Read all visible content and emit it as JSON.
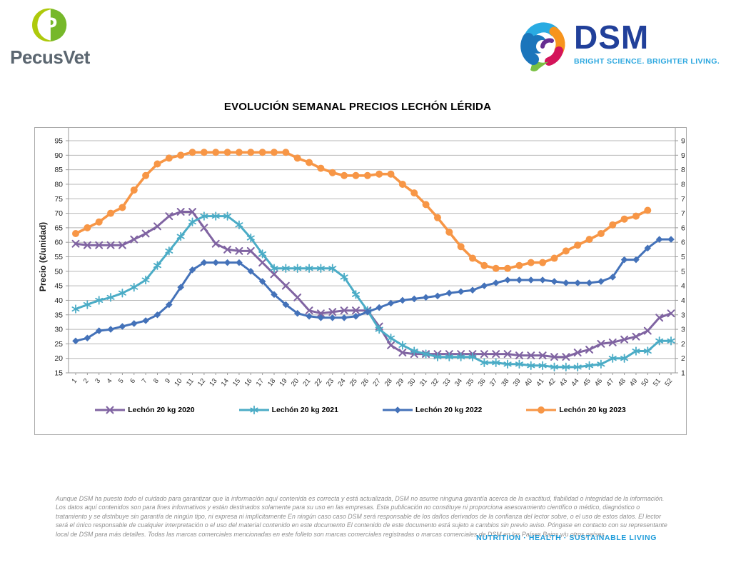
{
  "header": {
    "pecusvet_name": "PecusVet",
    "dsm_name": "DSM",
    "dsm_tagline": "BRIGHT SCIENCE. BRIGHTER LIVING."
  },
  "chart_data": {
    "type": "line",
    "title": "EVOLUCIÓN SEMANAL PRECIOS LECHÓN LÉRIDA",
    "xlabel": "",
    "ylabel": "Precio (€/unidad)",
    "ylim": [
      15,
      95
    ],
    "ystep": 5,
    "grid": true,
    "legend_position": "bottom",
    "x": [
      1,
      2,
      3,
      4,
      5,
      6,
      7,
      8,
      9,
      10,
      11,
      12,
      13,
      14,
      15,
      16,
      17,
      18,
      19,
      20,
      21,
      22,
      23,
      24,
      25,
      26,
      27,
      28,
      29,
      30,
      31,
      32,
      33,
      34,
      35,
      36,
      37,
      38,
      39,
      40,
      41,
      42,
      43,
      44,
      45,
      46,
      47,
      48,
      49,
      50,
      51,
      52
    ],
    "series": [
      {
        "name": "Lechón 20 kg 2020",
        "color": "#8064A2",
        "marker": "x",
        "values": [
          59.5,
          59,
          59,
          59,
          59,
          61,
          63,
          65.5,
          69,
          70.5,
          70.5,
          65,
          59.5,
          57.5,
          57,
          57,
          53,
          49,
          45,
          41,
          36.5,
          35.5,
          36,
          36.5,
          36.5,
          36.5,
          31,
          24.5,
          22,
          21.5,
          21.5,
          21.5,
          21.5,
          21.5,
          21.5,
          21.5,
          21.5,
          21.5,
          21,
          21,
          21,
          20.5,
          20.5,
          22,
          23,
          25,
          25.5,
          26.5,
          27.5,
          29.5,
          34,
          35.5
        ]
      },
      {
        "name": "Lechón 20 kg 2021",
        "color": "#4BACC6",
        "marker": "star",
        "values": [
          37,
          38.5,
          40,
          41,
          42.5,
          44.5,
          47,
          52,
          57,
          62,
          67,
          69,
          69,
          69,
          66,
          61.5,
          56,
          51,
          51,
          51,
          51,
          51,
          51,
          48,
          42,
          36.5,
          30,
          27,
          24.5,
          22.5,
          21.5,
          20.5,
          20.5,
          20.5,
          20.5,
          18.5,
          18.5,
          18,
          18,
          17.5,
          17.5,
          17,
          17,
          17,
          17.5,
          18,
          20,
          20,
          22.5,
          22.5,
          26,
          26
        ]
      },
      {
        "name": "Lechón 20 kg 2022",
        "color": "#4472B9",
        "marker": "diamond",
        "values": [
          26,
          27,
          29.5,
          30,
          31,
          32,
          33,
          35,
          38.5,
          44.5,
          50.5,
          53,
          53,
          53,
          53,
          50,
          46.5,
          42,
          38.5,
          35.5,
          34.5,
          34,
          34,
          34,
          34.5,
          36,
          37.5,
          39,
          40,
          40.5,
          41,
          41.5,
          42.5,
          43,
          43.5,
          45,
          46,
          47,
          47,
          47,
          47,
          46.5,
          46,
          46,
          46,
          46.5,
          48,
          54,
          54,
          58,
          61,
          61
        ]
      },
      {
        "name": "Lechón 20 kg 2023",
        "color": "#F79646",
        "marker": "circle",
        "values": [
          63,
          65,
          67,
          70,
          72,
          78,
          83,
          87,
          89,
          90,
          91,
          91,
          91,
          91,
          91,
          91,
          91,
          91,
          91,
          89,
          87.5,
          85.5,
          84,
          83,
          83,
          83,
          83.5,
          83.5,
          80,
          77,
          73,
          68.5,
          63.5,
          58.5,
          54.5,
          52,
          51,
          51,
          52,
          53,
          53,
          54.5,
          57,
          59,
          61,
          63,
          66,
          68,
          69,
          71,
          null,
          null
        ]
      }
    ]
  },
  "footer": {
    "disclaimer": "Aunque DSM ha puesto todo el cuidado para garantizar que la información aquí contenida es correcta y está actualizada, DSM no asume ninguna garantía acerca de la exactitud, fiabilidad o integridad de la información. Los datos aquí contenidos son para fines informativos y están destinados solamente para su uso en las empresas. Esta publicación no constituye ni proporciona asesoramiento científico o médico, diagnóstico o tratamiento y se distribuye sin garantía de ningún tipo, ni expresa ni implícitamente En ningún caso caso DSM será responsable de los daños derivados de la confianza del lector sobre, o el uso de estos datos. El lector será el único responsable de cualquier interpretación o el uso del material contenido en este documento El contenido de este documento está sujeto a cambios sin previo aviso. Póngase en contacto con su representante local de DSM para más detalles. Todas las marcas comerciales mencionadas en este folleto son marcas comerciales registradas o marcas comerciales de DSM en los Países Bajos y/u otros países.",
    "tagline": "NUTRITION · HEALTH · SUSTAINABLE LIVING"
  },
  "colors": {
    "series_2020": "#8064A2",
    "series_2021": "#4BACC6",
    "series_2022": "#4472B9",
    "series_2023": "#F79646",
    "dsm_blue": "#21409A",
    "dsm_light_blue": "#2BA7DF",
    "pecus_lime": "#AEC90B",
    "pecus_green": "#76B82A",
    "pecus_gray": "#5b6670",
    "tagline_blue": "#1F9CD9",
    "gridline": "#b7b7b7"
  }
}
